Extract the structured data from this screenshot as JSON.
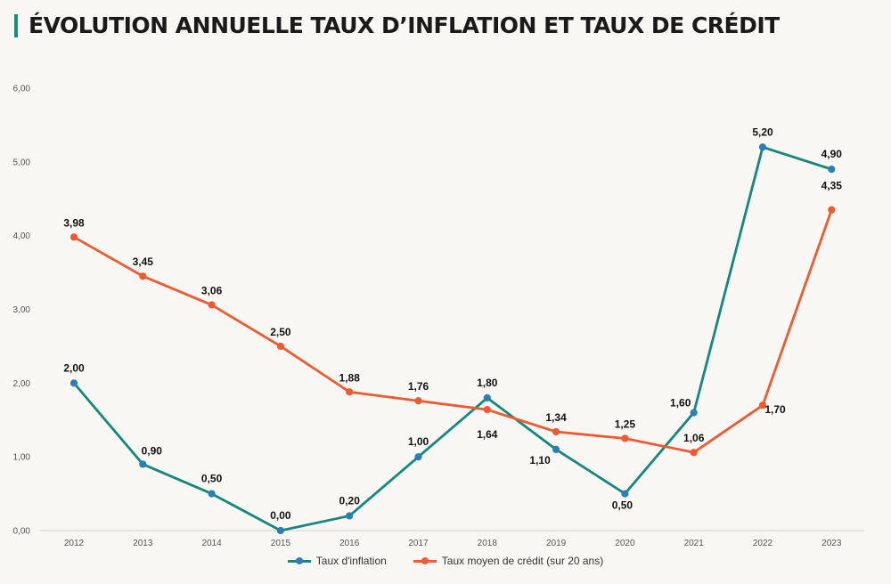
{
  "title": "ÉVOLUTION ANNUELLE TAUX D’INFLATION ET TAUX DE CRÉDIT",
  "colors": {
    "accent": "#1b8a7a",
    "inflation": "#15877c",
    "inflation_marker": "#2a7fb5",
    "credit": "#ee5a32"
  },
  "chart_data": {
    "type": "line",
    "title": "ÉVOLUTION ANNUELLE TAUX D’INFLATION ET TAUX DE CRÉDIT",
    "x": [
      "2012",
      "2013",
      "2014",
      "2015",
      "2016",
      "2017",
      "2018",
      "2019",
      "2020",
      "2021",
      "2022",
      "2023"
    ],
    "ylim": [
      0,
      6
    ],
    "yticks": [
      "0,00",
      "1,00",
      "2,00",
      "3,00",
      "4,00",
      "5,00",
      "6,00"
    ],
    "grid": false,
    "legend_position": "bottom",
    "series": [
      {
        "name": "Taux d'inflation",
        "values": [
          2.0,
          0.9,
          0.5,
          0.0,
          0.2,
          1.0,
          1.8,
          1.1,
          0.5,
          1.6,
          5.2,
          4.9
        ],
        "labels": [
          "2,00",
          "0,90",
          "0,50",
          "0,00",
          "0,20",
          "1,00",
          "1,80",
          "1,10",
          "0,50",
          "1,60",
          "5,20",
          "4,90"
        ]
      },
      {
        "name": "Taux moyen de crédit (sur 20 ans)",
        "values": [
          3.98,
          3.45,
          3.06,
          2.5,
          1.88,
          1.76,
          1.64,
          1.34,
          1.25,
          1.06,
          1.7,
          4.35
        ],
        "labels": [
          "3,98",
          "3,45",
          "3,06",
          "2,50",
          "1,88",
          "1,76",
          "1,64",
          "1,34",
          "1,25",
          "1,06",
          "1,70",
          "4,35"
        ]
      }
    ]
  }
}
